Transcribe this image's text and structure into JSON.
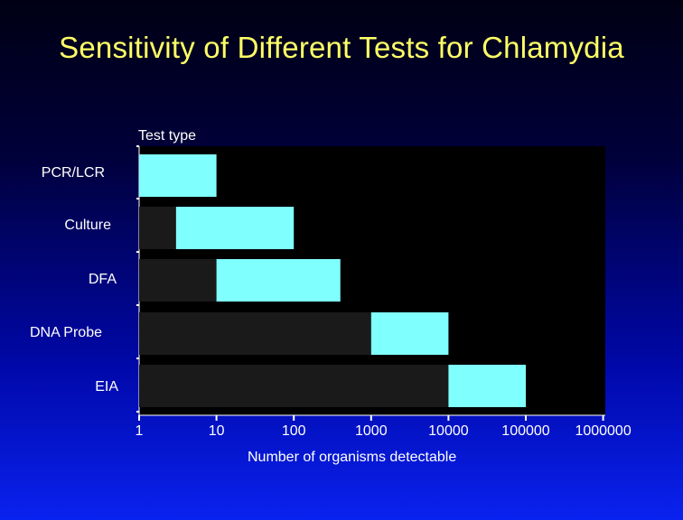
{
  "title": "Sensitivity of Different Tests for Chlamydia",
  "chart_data": {
    "type": "bar",
    "orientation": "horizontal-floating",
    "title": "Sensitivity of Different Tests for Chlamydia",
    "ylabel": "Test type",
    "xlabel": "Number of organisms detectable",
    "x_scale": "log",
    "xlim": [
      1,
      1000000
    ],
    "x_ticks": [
      "1",
      "10",
      "100",
      "1000",
      "10000",
      "100000",
      "1000000"
    ],
    "grid": false,
    "categories": [
      "PCR/LCR",
      "Culture",
      "DFA",
      "DNA Probe",
      "EIA"
    ],
    "ranges": [
      {
        "category": "PCR/LCR",
        "low": 1,
        "high": 10
      },
      {
        "category": "Culture",
        "low": 3,
        "high": 100
      },
      {
        "category": "DFA",
        "low": 10,
        "high": 400
      },
      {
        "category": "DNA Probe",
        "low": 1000,
        "high": 10000
      },
      {
        "category": "EIA",
        "low": 10000,
        "high": 100000
      }
    ],
    "colors": {
      "range": "#80ffff",
      "base": "#1a1a1a",
      "plot_bg": "#000000",
      "axis": "#ffffff",
      "title": "#ffff66",
      "text": "#ffffff"
    }
  }
}
